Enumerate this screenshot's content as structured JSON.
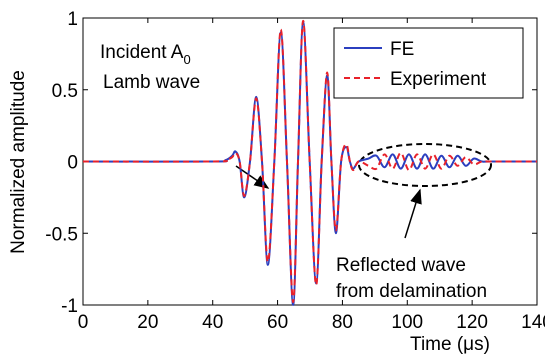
{
  "chart_data": {
    "type": "line",
    "xlabel": "Time (μs)",
    "ylabel": "Normalized amplitude",
    "x": [
      0,
      40,
      44,
      46,
      47,
      48.3,
      49.7,
      51.5,
      53.4,
      55.2,
      57,
      59,
      61,
      62.9,
      64.8,
      66.3,
      67.9,
      69.9,
      71.9,
      73.6,
      75.3,
      76.6,
      78,
      79.6,
      81.2,
      82.3,
      83.3,
      85,
      88,
      90.5,
      93,
      95.5,
      98,
      100.5,
      103,
      105.5,
      108,
      110.5,
      113,
      115.5,
      118,
      120.5,
      123,
      126,
      140
    ],
    "series": [
      {
        "name": "FE",
        "color": "#2b3fbf",
        "dash": false,
        "values": [
          0,
          0,
          0.01,
          0.04,
          0.07,
          0,
          -0.25,
          0,
          0.45,
          0,
          -0.72,
          0,
          0.9,
          0,
          -1,
          0,
          0.97,
          0,
          -0.85,
          0,
          0.6,
          0,
          -0.5,
          0,
          0.1,
          0,
          -0.05,
          0,
          0.02,
          0.04,
          -0.04,
          0.05,
          -0.05,
          0.05,
          -0.05,
          0.05,
          -0.05,
          0.04,
          -0.04,
          0.04,
          -0.03,
          0.02,
          0,
          0,
          0
        ]
      },
      {
        "name": "Experiment",
        "color": "#e8212a",
        "dash": true,
        "values": [
          0,
          0,
          0.01,
          0.03,
          0.06,
          0,
          -0.24,
          0,
          0.44,
          0,
          -0.7,
          0,
          0.92,
          0,
          -0.98,
          0,
          0.98,
          0,
          -0.86,
          0,
          0.62,
          0,
          -0.48,
          0,
          0.12,
          0,
          -0.06,
          0,
          -0.03,
          -0.05,
          0.05,
          -0.05,
          0.06,
          -0.06,
          0.05,
          -0.05,
          0.05,
          -0.05,
          0.04,
          -0.03,
          0.03,
          -0.02,
          0,
          0,
          0
        ]
      }
    ],
    "xlim": [
      0,
      140
    ],
    "xticks": [
      0,
      20,
      40,
      60,
      80,
      100,
      120,
      140
    ],
    "ylim": [
      -1,
      1
    ],
    "yticks": [
      -1,
      -0.5,
      0,
      0.5,
      1
    ],
    "grid": false,
    "legend": "upper right",
    "annotations": [
      {
        "lines": [
          "Incident A",
          "Lamb wave"
        ],
        "subscript": "0"
      },
      {
        "lines": [
          "Reflected wave",
          "from delamination"
        ]
      }
    ]
  }
}
